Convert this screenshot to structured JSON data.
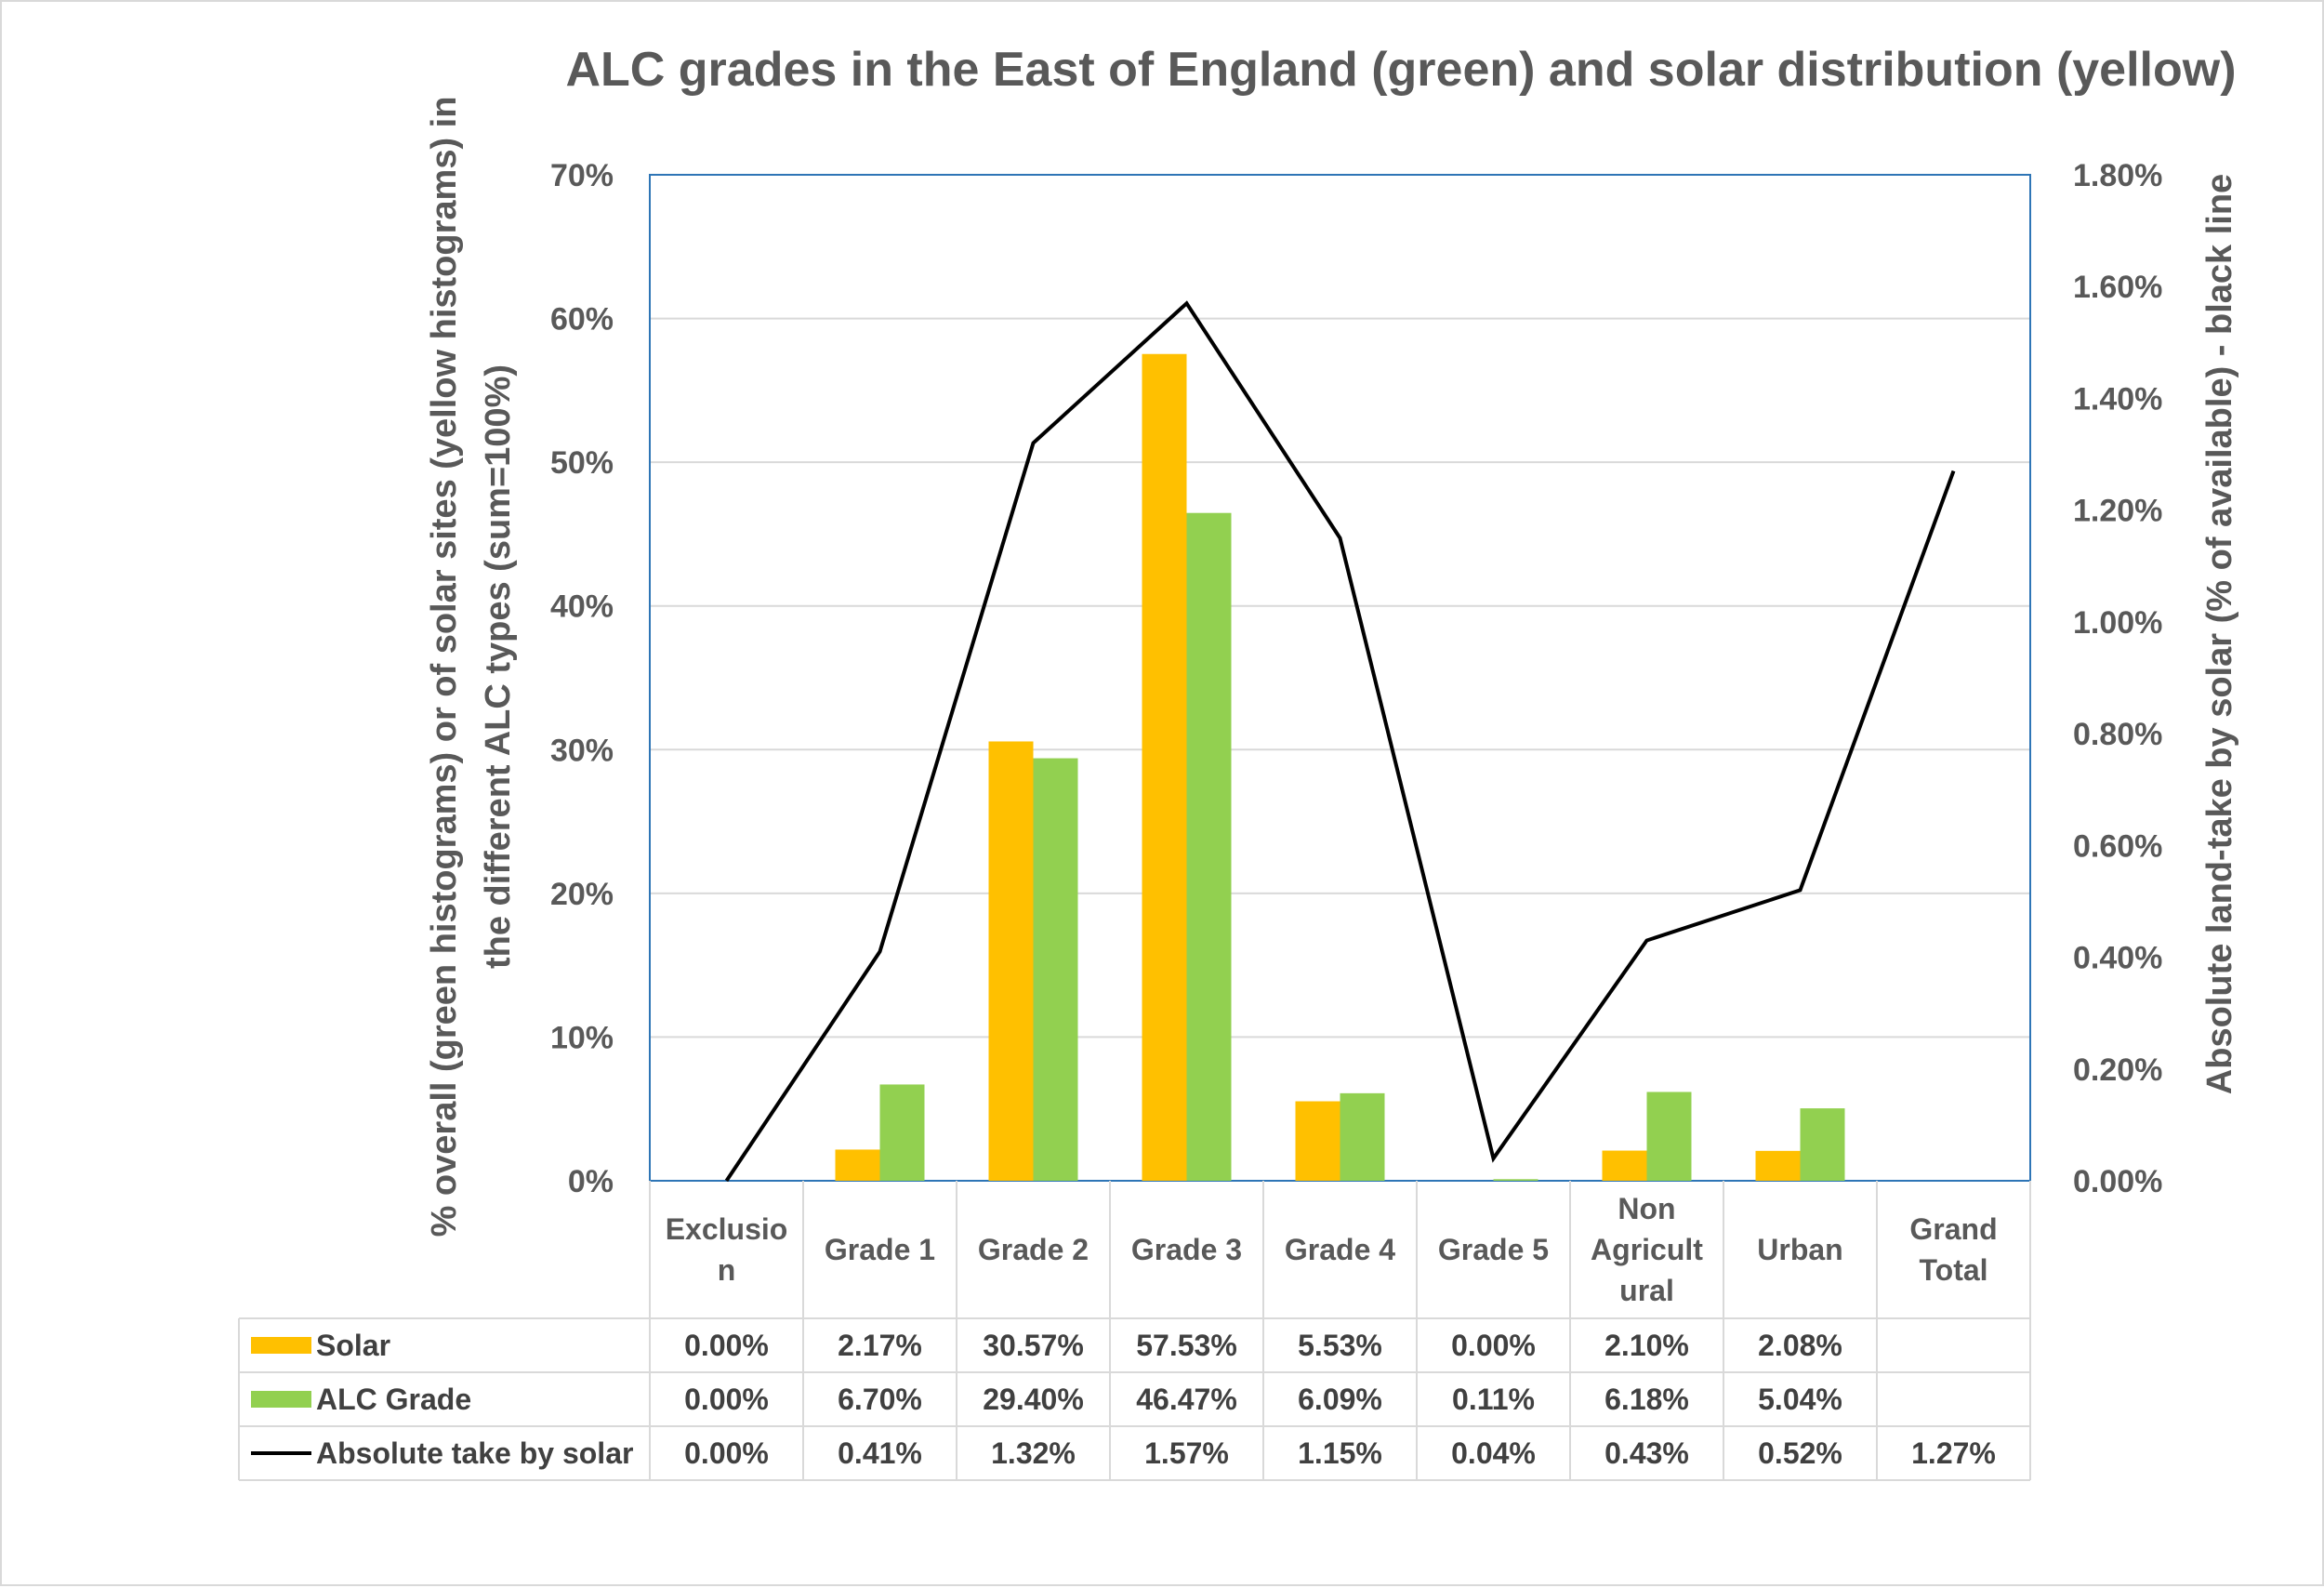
{
  "chart_data": {
    "type": "bar",
    "title": "ALC grades in the East of England (green) and solar distribution (yellow)",
    "ylabel_line1": "% overall (green histograms) or of solar sites (yellow histograms) in",
    "ylabel_line2": "the different ALC types (sum=100%)",
    "y2label": "Absolute land-take by solar (% of available) - black line",
    "ylim": [
      0,
      70
    ],
    "y_ticks": [
      0,
      10,
      20,
      30,
      40,
      50,
      60,
      70
    ],
    "y_tick_labels": [
      "0%",
      "10%",
      "20%",
      "30%",
      "40%",
      "50%",
      "60%",
      "70%"
    ],
    "y2lim": [
      0,
      1.8
    ],
    "y2_ticks": [
      0,
      0.2,
      0.4,
      0.6,
      0.8,
      1.0,
      1.2,
      1.4,
      1.6,
      1.8
    ],
    "y2_tick_labels": [
      "0.00%",
      "0.20%",
      "0.40%",
      "0.60%",
      "0.80%",
      "1.00%",
      "1.20%",
      "1.40%",
      "1.60%",
      "1.80%"
    ],
    "categories": [
      [
        "Exclusio",
        "n"
      ],
      [
        "Grade 1"
      ],
      [
        "Grade 2"
      ],
      [
        "Grade 3"
      ],
      [
        "Grade 4"
      ],
      [
        "Grade 5"
      ],
      [
        "Non",
        "Agricult",
        "ural"
      ],
      [
        "Urban"
      ],
      [
        "Grand",
        "Total"
      ]
    ],
    "series": [
      {
        "name": "Solar",
        "kind": "bar",
        "axis": "left",
        "color": "#FFC000",
        "values": [
          0.0,
          2.17,
          30.57,
          57.53,
          5.53,
          0.0,
          2.1,
          2.08,
          null
        ],
        "labels": [
          "0.00%",
          "2.17%",
          "30.57%",
          "57.53%",
          "5.53%",
          "0.00%",
          "2.10%",
          "2.08%",
          ""
        ]
      },
      {
        "name": "ALC Grade",
        "kind": "bar",
        "axis": "left",
        "color": "#92D050",
        "values": [
          0.0,
          6.7,
          29.4,
          46.47,
          6.09,
          0.11,
          6.18,
          5.04,
          null
        ],
        "labels": [
          "0.00%",
          "6.70%",
          "29.40%",
          "46.47%",
          "6.09%",
          "0.11%",
          "6.18%",
          "5.04%",
          ""
        ]
      },
      {
        "name": "Absolute take by solar",
        "kind": "line",
        "axis": "right",
        "color": "#000000",
        "values": [
          0.0,
          0.41,
          1.32,
          1.57,
          1.15,
          0.04,
          0.43,
          0.52,
          1.27
        ],
        "labels": [
          "0.00%",
          "0.41%",
          "1.32%",
          "1.57%",
          "1.15%",
          "0.04%",
          "0.43%",
          "0.52%",
          "1.27%"
        ]
      }
    ],
    "legend": "data-table",
    "grid": true
  }
}
